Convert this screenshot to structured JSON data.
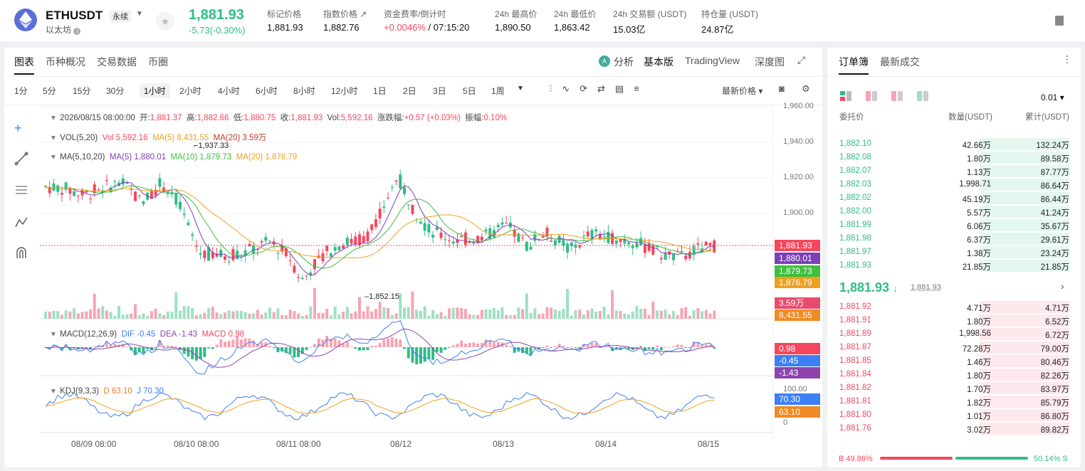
{
  "header": {
    "symbol": "ETHUSDT",
    "perp": "永续",
    "name": "以太坊",
    "last": "1,881.93",
    "change": "-5.73(-0.30%)",
    "stats": [
      {
        "l": "标记价格",
        "v": "1,881.93"
      },
      {
        "l": "指数价格 ↗",
        "v": "1,882.76"
      },
      {
        "l": "资金费率/倒计时",
        "v": "+0.0046% / 07:15:20"
      },
      {
        "l": "24h 最高价",
        "v": "1,890.50"
      },
      {
        "l": "24h 最低价",
        "v": "1,863.42"
      },
      {
        "l": "24h 交易额 (USDT)",
        "v": "15.03亿"
      },
      {
        "l": "持仓量 (USDT)",
        "v": "24.87亿"
      }
    ]
  },
  "tabs": [
    "图表",
    "币种概况",
    "交易数据",
    "币圈"
  ],
  "views": {
    "analysis": "分析",
    "basic": "基本版",
    "tv": "TradingView",
    "depth": "深度图"
  },
  "intervals": [
    "1分",
    "5分",
    "15分",
    "30分",
    "1小时",
    "2小时",
    "4小时",
    "6小时",
    "8小时",
    "12小时",
    "1日",
    "2日",
    "3日",
    "5日",
    "1周"
  ],
  "latest_price": "最新价格",
  "ohlc": {
    "date": "2026/08/15 08:00:00",
    "open_l": "开:",
    "open": "1,881.37",
    "high_l": "高:",
    "high": "1,882.66",
    "low_l": "低:",
    "low": "1,880.75",
    "close_l": "收:",
    "close": "1,881.93",
    "vol_l": "Vol:",
    "vol": "5,592.16",
    "chg_l": "涨跌幅:",
    "chg": "+0.57 (+0.03%)",
    "amp_l": "振幅:",
    "amp": "0.10%"
  },
  "vol_ind": {
    "name": "VOL(5,20)",
    "vol": "Vol 5,592.16",
    "ma5": "MA(5) 8,431.55",
    "ma20": "MA(20) 3.59万"
  },
  "ma_ind": {
    "name": "MA(5,10,20)",
    "ma5": "MA(5) 1,880.01",
    "ma10": "MA(10) 1,879.73",
    "ma20": "MA(20) 1,876.79"
  },
  "macd_ind": {
    "name": "MACD(12,26,9)",
    "dif": "DIF -0.45",
    "dea": "DEA -1.43",
    "macd": "MACD 0.98"
  },
  "kdj_ind": {
    "name": "KDJ(9,3,3)",
    "d": "D 63.10",
    "j": "J 70.30"
  },
  "price_axis": [
    "1,960.00",
    "1,940.00",
    "1,920.00",
    "1,900.00"
  ],
  "price_labels": [
    "1,881.93",
    "1,880.01",
    "1,879.73",
    "1,876.79",
    "3.59万",
    "8,431.55",
    "0.98",
    "-0.45",
    "-1.43",
    "70.30",
    "63.10"
  ],
  "kdj_axis": [
    "100.00",
    "0"
  ],
  "dates": [
    "08/09 08:00",
    "08/10 08:00",
    "08/11 08:00",
    "08/12",
    "08/13",
    "08/14",
    "08/15"
  ],
  "chart_labels": {
    "max": "1,937.33",
    "min": "1,852.15"
  },
  "colors": {
    "up": "#2ebd85",
    "down": "#f6465d",
    "ma5": "#7b3fb8",
    "ma10": "#3fbf3f",
    "ma20": "#f0a020"
  },
  "orderbook": {
    "tabs": [
      "订单簿",
      "最新成交"
    ],
    "precision": "0.01",
    "h_price": "委托价",
    "h_qty": "数量(USDT)",
    "h_cum": "累计(USDT)",
    "asks": [
      [
        "1,882.10",
        "42.66万",
        "132.24万"
      ],
      [
        "1,882.08",
        "1.80万",
        "89.58万"
      ],
      [
        "1,882.07",
        "1.13万",
        "87.77万"
      ],
      [
        "1,882.03",
        "1,998.71",
        "86.64万"
      ],
      [
        "1,882.02",
        "45.19万",
        "86.44万"
      ],
      [
        "1,882.00",
        "5.57万",
        "41.24万"
      ],
      [
        "1,881.99",
        "6.06万",
        "35.67万"
      ],
      [
        "1,881.98",
        "6.37万",
        "29.61万"
      ],
      [
        "1,881.97",
        "1.38万",
        "23.24万"
      ],
      [
        "1,881.93",
        "21.85万",
        "21.85万"
      ]
    ],
    "mid": "1,881.93",
    "mid_arrow": "↓",
    "mark": "1,881.93",
    "bids": [
      [
        "1,881.92",
        "4.71万",
        "4.71万"
      ],
      [
        "1,881.91",
        "1.80万",
        "6.52万"
      ],
      [
        "1,881.89",
        "1,998.56",
        "6.72万"
      ],
      [
        "1,881.87",
        "72.28万",
        "79.00万"
      ],
      [
        "1,881.85",
        "1.46万",
        "80.46万"
      ],
      [
        "1,881.84",
        "1.80万",
        "82.26万"
      ],
      [
        "1,881.82",
        "1.70万",
        "83.97万"
      ],
      [
        "1,881.81",
        "1.82万",
        "85.79万"
      ],
      [
        "1,881.80",
        "1.01万",
        "86.80万"
      ],
      [
        "1,881.76",
        "3.02万",
        "89.82万"
      ]
    ],
    "buy": "B 49.86%",
    "sell": "50.14% S",
    "buy_ratio": 0.4986
  }
}
